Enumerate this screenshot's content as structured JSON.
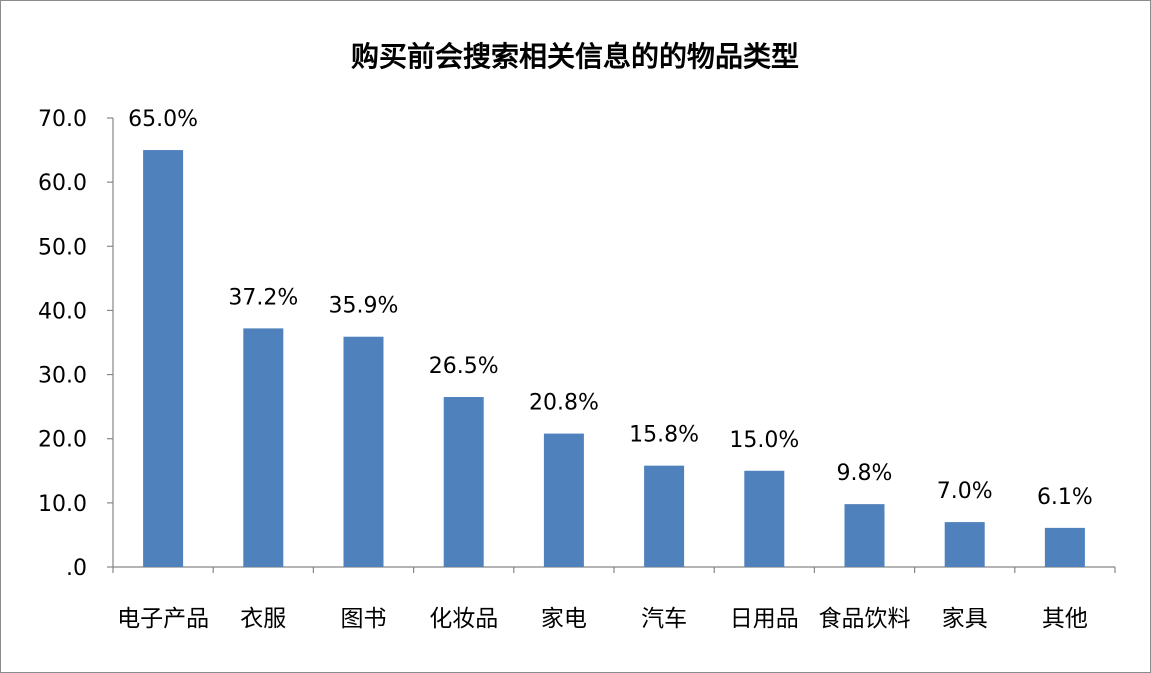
{
  "chart_data": {
    "type": "bar",
    "title": "购买前会搜索相关信息的的物品类型",
    "categories": [
      "电子产品",
      "衣服",
      "图书",
      "化妆品",
      "家电",
      "汽车",
      "日用品",
      "食品饮料",
      "家具",
      "其他"
    ],
    "values": [
      65.0,
      37.2,
      35.9,
      26.5,
      20.8,
      15.8,
      15.0,
      9.8,
      7.0,
      6.1
    ],
    "data_labels": [
      "65.0%",
      "37.2%",
      "35.9%",
      "26.5%",
      "20.8%",
      "15.8%",
      "15.0%",
      "9.8%",
      "7.0%",
      "6.1%"
    ],
    "ylim": [
      0,
      70
    ],
    "yticks": [
      ".0",
      "10.0",
      "20.0",
      "30.0",
      "40.0",
      "50.0",
      "60.0",
      "70.0"
    ],
    "xlabel": "",
    "ylabel": "",
    "grid": false,
    "legend": "none",
    "bar_color": "#4f81bd"
  }
}
